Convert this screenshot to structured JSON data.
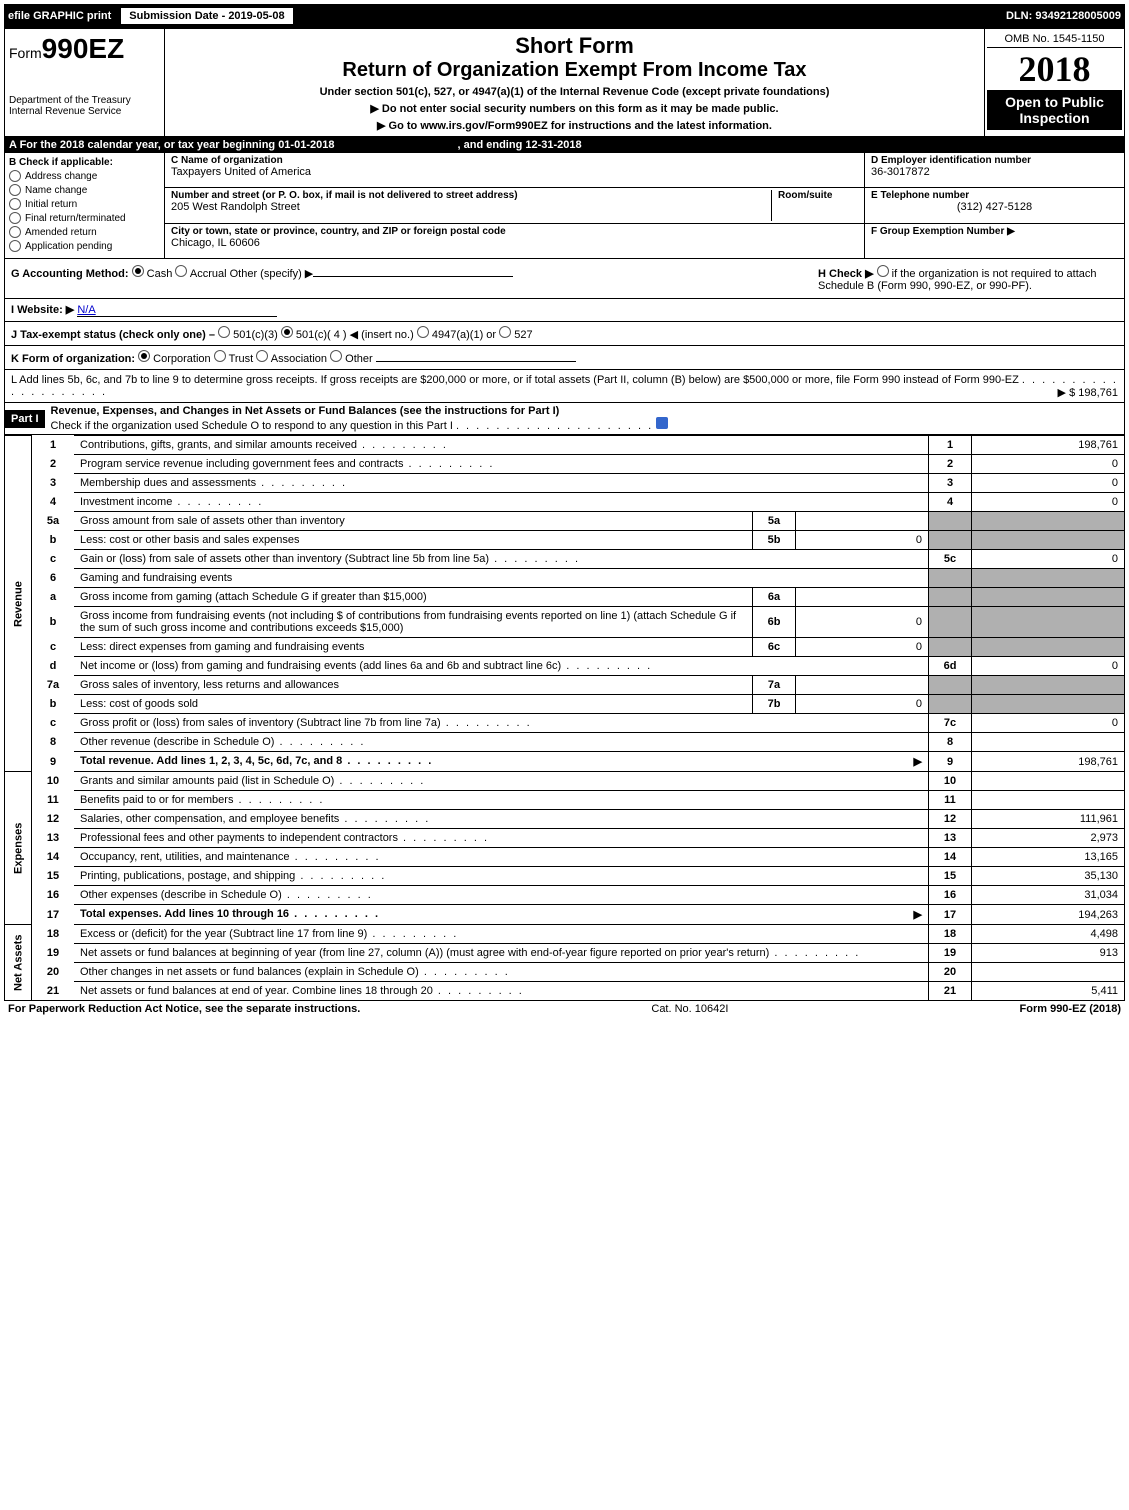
{
  "colors": {
    "black": "#000000",
    "white": "#ffffff",
    "shaded": "#b0b0b0",
    "link": "#0000cc",
    "help_icon": "#3366cc"
  },
  "topbar": {
    "efile": "efile GRAPHIC print",
    "submission": "Submission Date - 2019-05-08",
    "dln": "DLN: 93492128005009"
  },
  "header": {
    "form_prefix": "Form",
    "form_number": "990EZ",
    "short_form": "Short Form",
    "title": "Return of Organization Exempt From Income Tax",
    "subtitle": "Under section 501(c), 527, or 4947(a)(1) of the Internal Revenue Code (except private foundations)",
    "warn": "▶ Do not enter social security numbers on this form as it may be made public.",
    "goto": "▶ Go to www.irs.gov/Form990EZ for instructions and the latest information.",
    "dept1": "Department of the Treasury",
    "dept2": "Internal Revenue Service",
    "omb": "OMB No. 1545-1150",
    "year": "2018",
    "open": "Open to Public Inspection"
  },
  "sectionA": {
    "label": "A For the 2018 calendar year, or tax year beginning 01-01-2018",
    "ending": ", and ending 12-31-2018"
  },
  "checkB": {
    "label": "B Check if applicable:",
    "items": [
      "Address change",
      "Name change",
      "Initial return",
      "Final return/terminated",
      "Amended return",
      "Application pending"
    ]
  },
  "org": {
    "c_label": "C Name of organization",
    "c_value": "Taxpayers United of America",
    "street_label": "Number and street (or P. O. box, if mail is not delivered to street address)",
    "room_label": "Room/suite",
    "street_value": "205 West Randolph Street",
    "city_label": "City or town, state or province, country, and ZIP or foreign postal code",
    "city_value": "Chicago, IL  60606"
  },
  "right": {
    "d_label": "D Employer identification number",
    "d_value": "36-3017872",
    "e_label": "E Telephone number",
    "e_value": "(312) 427-5128",
    "f_label": "F Group Exemption Number ▶"
  },
  "rowG": {
    "g_label": "G Accounting Method:",
    "g_opts": [
      "Cash",
      "Accrual",
      "Other (specify) ▶"
    ],
    "h_label": "H  Check ▶",
    "h_text": "if the organization is not required to attach Schedule B (Form 990, 990-EZ, or 990-PF)."
  },
  "rowI": {
    "label": "I Website: ▶",
    "value": "N/A"
  },
  "rowJ": {
    "label": "J Tax-exempt status (check only one) –",
    "opts": [
      "501(c)(3)",
      "501(c)( 4 ) ◀ (insert no.)",
      "4947(a)(1) or",
      "527"
    ]
  },
  "rowK": {
    "label": "K Form of organization:",
    "opts": [
      "Corporation",
      "Trust",
      "Association",
      "Other"
    ]
  },
  "rowL": {
    "text": "L Add lines 5b, 6c, and 7b to line 9 to determine gross receipts. If gross receipts are $200,000 or more, or if total assets (Part II, column (B) below) are $500,000 or more, file Form 990 instead of Form 990-EZ",
    "value": "▶ $ 198,761"
  },
  "part1": {
    "label": "Part I",
    "title": "Revenue, Expenses, and Changes in Net Assets or Fund Balances (see the instructions for Part I)",
    "check": "Check if the organization used Schedule O to respond to any question in this Part I"
  },
  "sections": {
    "revenue": "Revenue",
    "expenses": "Expenses",
    "netassets": "Net Assets"
  },
  "lines": [
    {
      "n": "1",
      "desc": "Contributions, gifts, grants, and similar amounts received",
      "col": "1",
      "val": "198,761"
    },
    {
      "n": "2",
      "desc": "Program service revenue including government fees and contracts",
      "col": "2",
      "val": "0"
    },
    {
      "n": "3",
      "desc": "Membership dues and assessments",
      "col": "3",
      "val": "0"
    },
    {
      "n": "4",
      "desc": "Investment income",
      "col": "4",
      "val": "0"
    },
    {
      "n": "5a",
      "desc": "Gross amount from sale of assets other than inventory",
      "sub": "5a",
      "subval": ""
    },
    {
      "n": "b",
      "desc": "Less: cost or other basis and sales expenses",
      "sub": "5b",
      "subval": "0"
    },
    {
      "n": "c",
      "desc": "Gain or (loss) from sale of assets other than inventory (Subtract line 5b from line 5a)",
      "col": "5c",
      "val": "0"
    },
    {
      "n": "6",
      "desc": "Gaming and fundraising events"
    },
    {
      "n": "a",
      "desc": "Gross income from gaming (attach Schedule G if greater than $15,000)",
      "sub": "6a",
      "subval": ""
    },
    {
      "n": "b",
      "desc": "Gross income from fundraising events (not including $                    of contributions from fundraising events reported on line 1) (attach Schedule G if the sum of such gross income and contributions exceeds $15,000)",
      "sub": "6b",
      "subval": "0"
    },
    {
      "n": "c",
      "desc": "Less: direct expenses from gaming and fundraising events",
      "sub": "6c",
      "subval": "0"
    },
    {
      "n": "d",
      "desc": "Net income or (loss) from gaming and fundraising events (add lines 6a and 6b and subtract line 6c)",
      "col": "6d",
      "val": "0"
    },
    {
      "n": "7a",
      "desc": "Gross sales of inventory, less returns and allowances",
      "sub": "7a",
      "subval": ""
    },
    {
      "n": "b",
      "desc": "Less: cost of goods sold",
      "sub": "7b",
      "subval": "0"
    },
    {
      "n": "c",
      "desc": "Gross profit or (loss) from sales of inventory (Subtract line 7b from line 7a)",
      "col": "7c",
      "val": "0"
    },
    {
      "n": "8",
      "desc": "Other revenue (describe in Schedule O)",
      "col": "8",
      "val": ""
    },
    {
      "n": "9",
      "desc": "Total revenue. Add lines 1, 2, 3, 4, 5c, 6d, 7c, and 8",
      "col": "9",
      "val": "198,761",
      "bold": true,
      "arrow": true
    }
  ],
  "expenses": [
    {
      "n": "10",
      "desc": "Grants and similar amounts paid (list in Schedule O)",
      "col": "10",
      "val": ""
    },
    {
      "n": "11",
      "desc": "Benefits paid to or for members",
      "col": "11",
      "val": ""
    },
    {
      "n": "12",
      "desc": "Salaries, other compensation, and employee benefits",
      "col": "12",
      "val": "111,961"
    },
    {
      "n": "13",
      "desc": "Professional fees and other payments to independent contractors",
      "col": "13",
      "val": "2,973"
    },
    {
      "n": "14",
      "desc": "Occupancy, rent, utilities, and maintenance",
      "col": "14",
      "val": "13,165"
    },
    {
      "n": "15",
      "desc": "Printing, publications, postage, and shipping",
      "col": "15",
      "val": "35,130"
    },
    {
      "n": "16",
      "desc": "Other expenses (describe in Schedule O)",
      "col": "16",
      "val": "31,034"
    },
    {
      "n": "17",
      "desc": "Total expenses. Add lines 10 through 16",
      "col": "17",
      "val": "194,263",
      "bold": true,
      "arrow": true
    }
  ],
  "netassets": [
    {
      "n": "18",
      "desc": "Excess or (deficit) for the year (Subtract line 17 from line 9)",
      "col": "18",
      "val": "4,498"
    },
    {
      "n": "19",
      "desc": "Net assets or fund balances at beginning of year (from line 27, column (A)) (must agree with end-of-year figure reported on prior year's return)",
      "col": "19",
      "val": "913"
    },
    {
      "n": "20",
      "desc": "Other changes in net assets or fund balances (explain in Schedule O)",
      "col": "20",
      "val": ""
    },
    {
      "n": "21",
      "desc": "Net assets or fund balances at end of year. Combine lines 18 through 20",
      "col": "21",
      "val": "5,411"
    }
  ],
  "footer": {
    "left": "For Paperwork Reduction Act Notice, see the separate instructions.",
    "center": "Cat. No. 10642I",
    "right": "Form 990-EZ (2018)"
  }
}
